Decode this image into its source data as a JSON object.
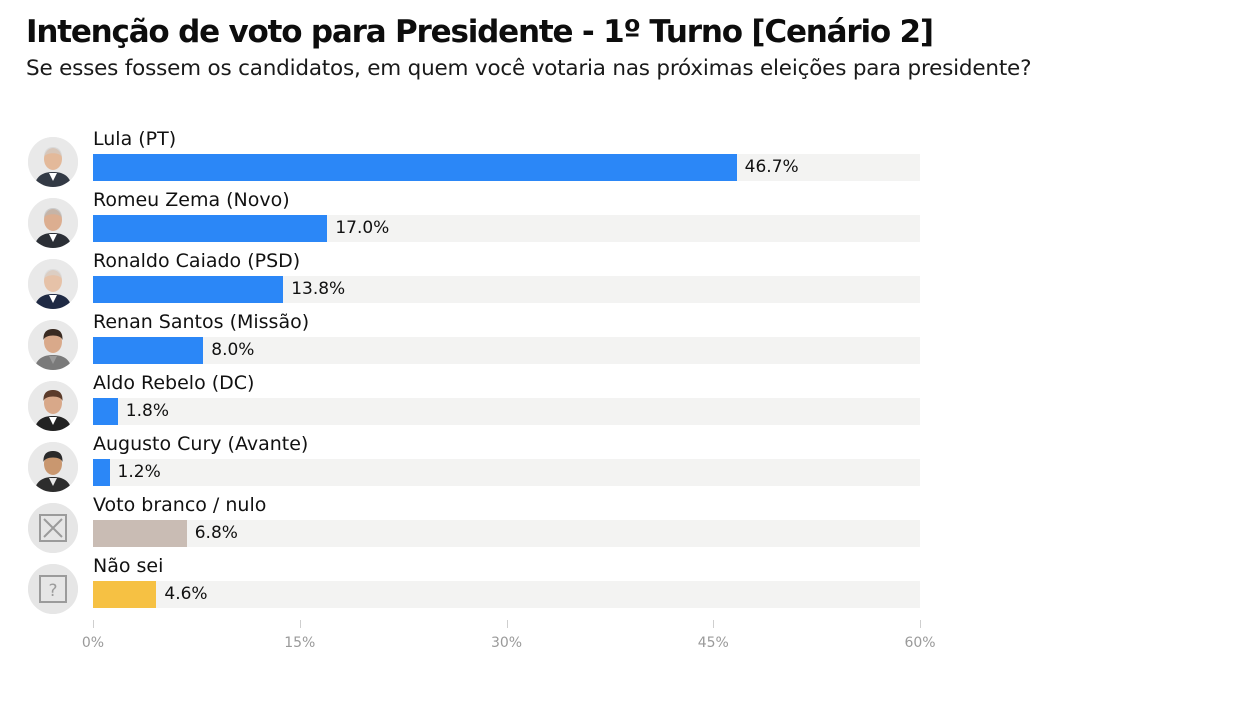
{
  "title": "Intenção de voto para Presidente - 1º Turno [Cenário 2]",
  "subtitle": "Se esses fossem os candidatos, em quem você votaria nas próximas eleições para presidente?",
  "colors": {
    "candidate": "#2b87f7",
    "blank": "#c9bcb4",
    "unknown": "#f6c143",
    "track": "#f3f3f2"
  },
  "chart_data": {
    "type": "bar",
    "orientation": "horizontal",
    "categories": [
      "Lula (PT)",
      "Romeu Zema (Novo)",
      "Ronaldo Caiado (PSD)",
      "Renan Santos (Missão)",
      "Aldo Rebelo (DC)",
      "Augusto Cury (Avante)",
      "Voto branco / nulo",
      "Não sei"
    ],
    "values": [
      46.7,
      17.0,
      13.8,
      8.0,
      1.8,
      1.2,
      6.8,
      4.6
    ],
    "value_labels": [
      "46.7%",
      "17.0%",
      "13.8%",
      "8.0%",
      "1.8%",
      "1.2%",
      "6.8%",
      "4.6%"
    ],
    "bar_colors": [
      "#2b87f7",
      "#2b87f7",
      "#2b87f7",
      "#2b87f7",
      "#2b87f7",
      "#2b87f7",
      "#c9bcb4",
      "#f6c143"
    ],
    "icons": [
      "candidate-photo",
      "candidate-photo",
      "candidate-photo",
      "candidate-photo",
      "candidate-photo",
      "candidate-photo",
      "x-box-icon",
      "question-box-icon"
    ],
    "xlim": [
      0,
      60
    ],
    "x_ticks": [
      0,
      15,
      30,
      45,
      60
    ],
    "x_tick_labels": [
      "0%",
      "15%",
      "30%",
      "45%",
      "60%"
    ],
    "grid": false,
    "legend": "none"
  }
}
